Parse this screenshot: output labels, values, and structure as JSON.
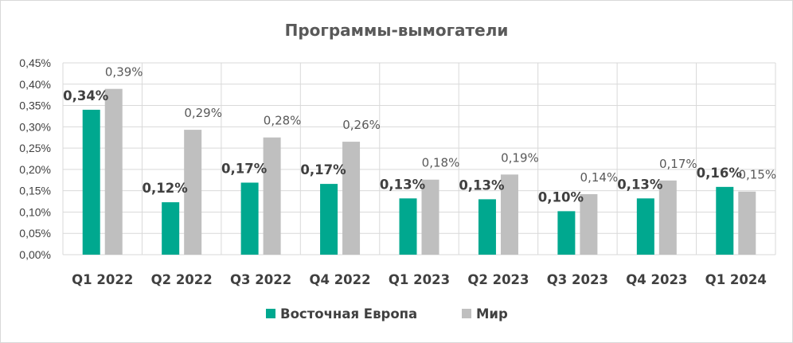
{
  "chart_data": {
    "type": "bar",
    "title": "Программы-вымогатели",
    "categories": [
      "Q1 2022",
      "Q2 2022",
      "Q3 2022",
      "Q4 2022",
      "Q1 2023",
      "Q2 2023",
      "Q3 2023",
      "Q4 2023",
      "Q1 2024"
    ],
    "series": [
      {
        "name": "Восточная Европа",
        "color": "#00a88f",
        "values": [
          0.34,
          0.123,
          0.169,
          0.166,
          0.132,
          0.13,
          0.102,
          0.132,
          0.159
        ],
        "labels": [
          "0,34%",
          "0,12%",
          "0,17%",
          "0,17%",
          "0,13%",
          "0,13%",
          "0,10%",
          "0,13%",
          "0,16%"
        ]
      },
      {
        "name": "Мир",
        "color": "#bfbfbf",
        "values": [
          0.389,
          0.293,
          0.275,
          0.265,
          0.176,
          0.188,
          0.142,
          0.174,
          0.148
        ],
        "labels": [
          "0,39%",
          "0,29%",
          "0,28%",
          "0,26%",
          "0,18%",
          "0,19%",
          "0,14%",
          "0,17%",
          "0,15%"
        ]
      }
    ],
    "yticks": [
      "0,00%",
      "0,05%",
      "0,10%",
      "0,15%",
      "0,20%",
      "0,25%",
      "0,30%",
      "0,35%",
      "0,40%",
      "0,45%"
    ],
    "ylim": [
      0,
      0.45
    ],
    "grid": "vertical",
    "legend": "bottom"
  }
}
